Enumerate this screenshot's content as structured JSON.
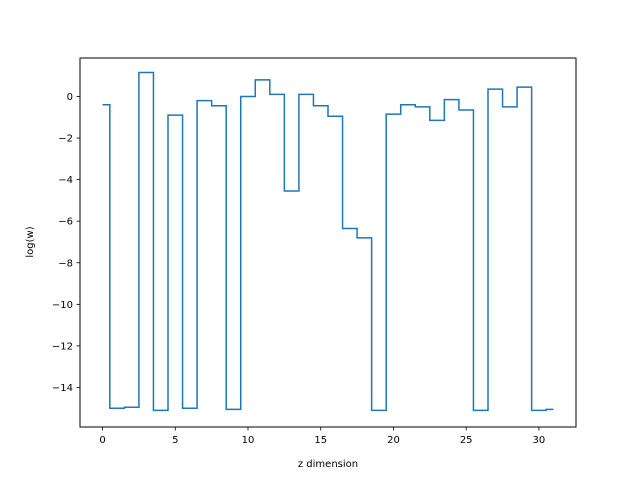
{
  "chart_data": {
    "type": "line",
    "drawstyle": "steps-mid",
    "title": "",
    "xlabel": "z dimension",
    "ylabel": "log(w)",
    "xlim": [
      -1.55,
      32.55
    ],
    "ylim": [
      -15.9,
      1.85
    ],
    "xticks": [
      0,
      5,
      10,
      15,
      20,
      25,
      30
    ],
    "xtick_labels": [
      "0",
      "5",
      "10",
      "15",
      "20",
      "25",
      "30"
    ],
    "yticks": [
      0,
      -2,
      -4,
      -6,
      -8,
      -10,
      -12,
      -14
    ],
    "ytick_labels": [
      "0",
      "−2",
      "−4",
      "−6",
      "−8",
      "−10",
      "−12",
      "−14"
    ],
    "grid": false,
    "legend": false,
    "series": [
      {
        "x": [
          0,
          1,
          2,
          3,
          4,
          5,
          6,
          7,
          8,
          9,
          10,
          11,
          12,
          13,
          14,
          15,
          16,
          17,
          18,
          19,
          20,
          21,
          22,
          23,
          24,
          25,
          26,
          27,
          28,
          29,
          30,
          31
        ],
        "values": [
          -0.4,
          -15.0,
          -14.95,
          1.15,
          -15.1,
          -0.9,
          -15.0,
          -0.2,
          -0.45,
          -15.05,
          0.0,
          0.8,
          0.1,
          -4.55,
          0.1,
          -0.45,
          -0.95,
          -6.35,
          -6.8,
          -15.1,
          -0.85,
          -0.4,
          -0.5,
          -1.15,
          -0.15,
          -0.65,
          -15.1,
          0.35,
          -0.5,
          0.45,
          -15.1,
          -15.05
        ],
        "color": "#1f77b4"
      }
    ]
  }
}
